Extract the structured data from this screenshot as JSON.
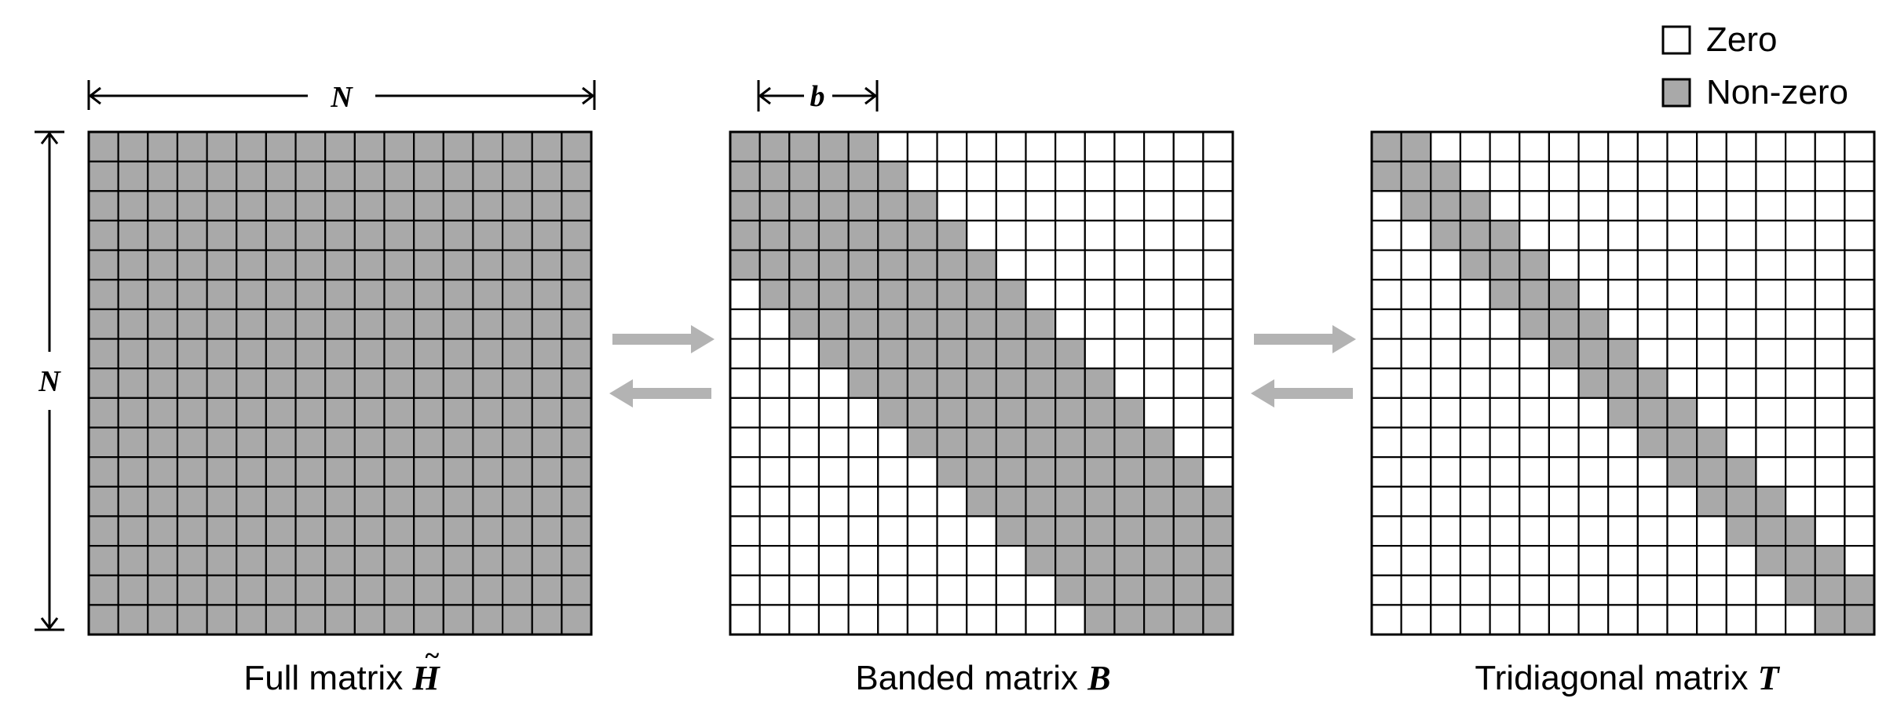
{
  "colors": {
    "nonzero": "#a9a9a9",
    "zero": "#ffffff",
    "gridline": "#000000",
    "arrow": "#b3b3b3"
  },
  "matrix_size": 17,
  "legend": {
    "zero_label": "Zero",
    "nonzero_label": "Non-zero"
  },
  "dimension_labels": {
    "width": "N",
    "height": "N",
    "bandwidth": "b"
  },
  "matrices": [
    {
      "id": "full",
      "pattern": "full",
      "caption_text": "Full matrix ",
      "caption_symbol": "H",
      "caption_accent": "~"
    },
    {
      "id": "banded",
      "pattern": "banded",
      "bandwidth": 4,
      "caption_text": "Banded matrix ",
      "caption_symbol": "B"
    },
    {
      "id": "tridiagonal",
      "pattern": "tridiagonal",
      "caption_text": "Tridiagonal matrix ",
      "caption_symbol": "T"
    }
  ]
}
